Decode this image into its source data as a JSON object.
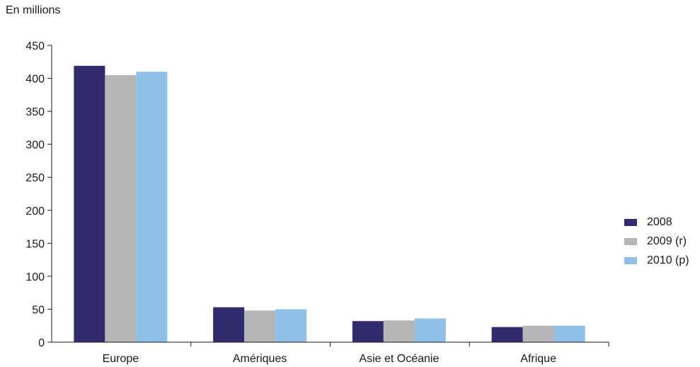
{
  "chart_data": {
    "type": "bar",
    "ylabel": "En millions",
    "categories": [
      "Europe",
      "Amériques",
      "Asie et Océanie",
      "Afrique"
    ],
    "series": [
      {
        "name": "2008",
        "color": "#312c6d",
        "values": [
          419,
          53,
          32,
          23
        ]
      },
      {
        "name": "2009 (r)",
        "color": "#b6b6b8",
        "values": [
          405,
          48,
          33,
          25
        ]
      },
      {
        "name": "2010 (p)",
        "color": "#8fc1e8",
        "values": [
          410,
          50,
          36,
          25
        ]
      }
    ],
    "ylim": [
      0,
      450
    ],
    "yticks": [
      0,
      50,
      100,
      150,
      200,
      250,
      300,
      350,
      400,
      450
    ],
    "grid": false,
    "legend": "right"
  }
}
